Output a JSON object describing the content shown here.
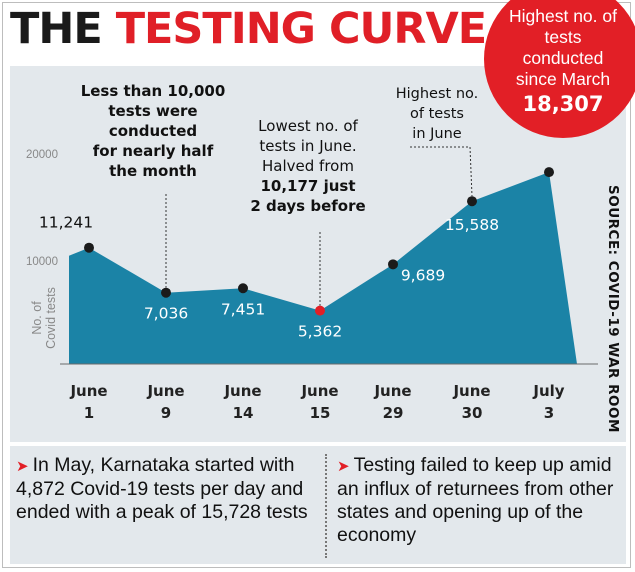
{
  "title": {
    "word1": "THE",
    "word2": "TESTING CURVE"
  },
  "badge": {
    "text": "Highest no. of tests conducted since March",
    "value": "18,307"
  },
  "source": "SOURCE: COVID-19 WAR ROOM",
  "chart_data": {
    "type": "area",
    "categories": [
      "June 1",
      "June 9",
      "June 14",
      "June 15",
      "June 29",
      "June 30",
      "July 3"
    ],
    "values": [
      11241,
      7036,
      7451,
      5362,
      9689,
      15588,
      18307
    ],
    "data_labels": [
      "11,241",
      "7,036",
      "7,451",
      "5,362",
      "9,689",
      "15,588",
      "18,307"
    ],
    "ylabel": "No. of Covid tests",
    "yticks": [
      {
        "value": 20000,
        "label": "20000"
      },
      {
        "value": 10000,
        "label": "10000"
      }
    ],
    "ylim": [
      0,
      20000
    ],
    "grid": false,
    "annotations": [
      {
        "point": "June 9",
        "lines": [
          "Less than 10,000",
          "tests were",
          "conducted",
          "for nearly half",
          "the month"
        ],
        "bold": true
      },
      {
        "point": "June 15",
        "lines": [
          "Lowest no. of",
          "tests in June.",
          "Halved from",
          "10,177 just",
          "2 days before"
        ],
        "bold_from_line": 3
      },
      {
        "point": "June 30",
        "lines": [
          "Highest no.",
          "of tests",
          "in June"
        ]
      }
    ],
    "colors": {
      "area": "#1b83a6",
      "marker": "#1b1b1b",
      "low_marker": "#e21f26"
    }
  },
  "notes": [
    "In May, Karnataka started with 4,872 Covid-19 tests per day and ended with a peak of 15,728 tests",
    "Testing failed to keep up amid an influx of returnees from other states and opening up of the economy"
  ]
}
